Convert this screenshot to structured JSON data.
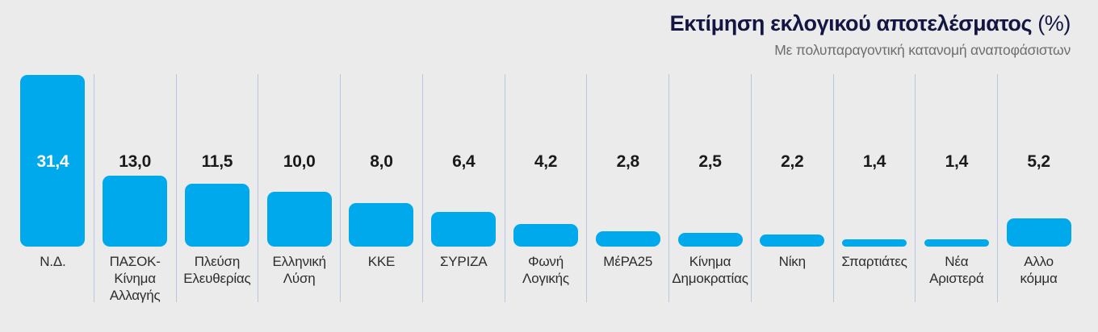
{
  "chart_data": {
    "type": "bar",
    "title": "Εκτίμηση εκλογικού αποτελέσματος",
    "title_suffix": "(%)",
    "subtitle": "Με πολυπαραγοντική κατανομή αναποφάσιστων",
    "unit": "%",
    "categories": [
      "Ν.Δ.",
      "ΠΑΣΟΚ-\nΚίνημα\nΑλλαγής",
      "Πλεύση\nΕλευθερίας",
      "Ελληνική\nΛύση",
      "ΚΚΕ",
      "ΣΥΡΙΖΑ",
      "Φωνή\nΛογικής",
      "ΜέΡΑ25",
      "Κίνημα\nΔημοκρατίας",
      "Νίκη",
      "Σπαρτιάτες",
      "Νέα\nΑριστερά",
      "Αλλο\nκόμμα"
    ],
    "values": [
      31.4,
      13.0,
      11.5,
      10.0,
      8.0,
      6.4,
      4.2,
      2.8,
      2.5,
      2.2,
      1.4,
      1.4,
      5.2
    ],
    "value_labels": [
      "31,4",
      "13,0",
      "11,5",
      "10,0",
      "8,0",
      "6,4",
      "4,2",
      "2,8",
      "2,5",
      "2,2",
      "1,4",
      "1,4",
      "5,2"
    ],
    "ylim": [
      0,
      31.4
    ],
    "legend": "none",
    "grid": "vertical-column-dividers",
    "colors": {
      "bar": "#00a9eb",
      "value_text": "#1a1a1a",
      "value_text_on_bar": "#ffffff",
      "title": "#131643",
      "subtitle": "#6e6e6e",
      "category_label": "#2d2d2d",
      "divider": "#b9c6e2",
      "background": "#ebebeb"
    }
  }
}
